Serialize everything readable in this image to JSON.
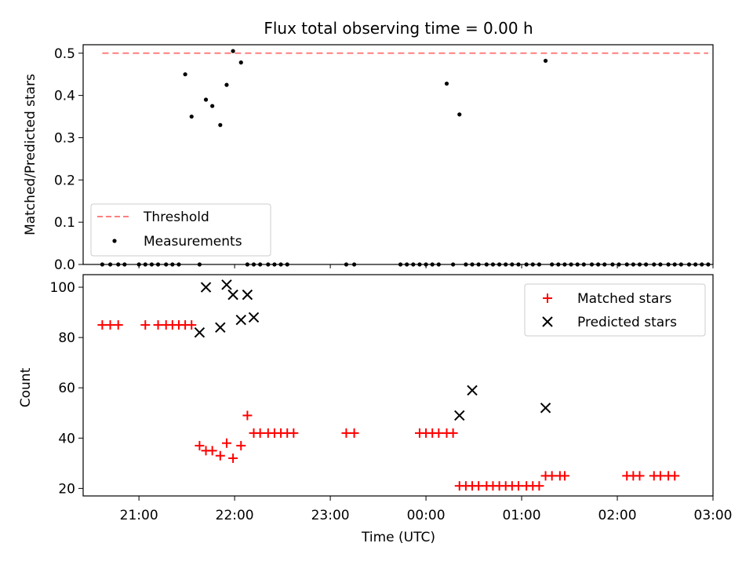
{
  "chart_data": [
    {
      "type": "scatter",
      "title": "Flux total observing time = 0.00 h",
      "xlabel": "",
      "ylabel": "Matched/Predicted stars",
      "xlim": [
        "20:25",
        "03:00"
      ],
      "ylim": [
        0,
        0.52
      ],
      "yticks": [
        "0.0",
        "0.1",
        "0.2",
        "0.3",
        "0.4",
        "0.5"
      ],
      "grid": false,
      "legend": {
        "placement": "lower-left",
        "entries": [
          "Threshold",
          "Measurements"
        ]
      },
      "series": [
        {
          "name": "Threshold",
          "kind": "dashed-line",
          "color": "#ff7f7f",
          "x": [
            "20:37",
            "02:57"
          ],
          "values": [
            0.5,
            0.5
          ]
        },
        {
          "name": "Measurements",
          "kind": "points",
          "color": "#000000",
          "x": [
            "20:37",
            "20:42",
            "20:47",
            "20:51",
            "21:00",
            "21:04",
            "21:08",
            "21:12",
            "21:17",
            "21:21",
            "21:25",
            "21:29",
            "21:33",
            "21:38",
            "21:42",
            "21:46",
            "21:51",
            "21:55",
            "21:59",
            "22:04",
            "22:08",
            "22:12",
            "22:16",
            "22:21",
            "22:25",
            "22:29",
            "22:33",
            "23:10",
            "23:15",
            "23:44",
            "23:48",
            "23:52",
            "23:56",
            "00:00",
            "00:04",
            "00:08",
            "00:13",
            "00:17",
            "00:21",
            "00:25",
            "00:29",
            "00:33",
            "00:38",
            "00:42",
            "00:46",
            "00:50",
            "00:54",
            "00:58",
            "01:03",
            "01:07",
            "01:11",
            "01:15",
            "01:19",
            "01:23",
            "01:27",
            "01:31",
            "01:35",
            "01:39",
            "01:44",
            "01:48",
            "01:52",
            "01:57",
            "02:01",
            "02:06",
            "02:10",
            "02:14",
            "02:18",
            "02:23",
            "02:27",
            "02:32",
            "02:36",
            "02:40",
            "02:45",
            "02:49",
            "02:53",
            "02:57"
          ],
          "values": [
            0,
            0,
            0,
            0,
            0,
            0,
            0,
            0,
            0,
            0,
            0,
            0.45,
            0.35,
            0,
            0.39,
            0.375,
            0.33,
            0.425,
            0.505,
            0.478,
            0,
            0,
            0,
            0,
            0,
            0,
            0,
            0,
            0,
            0,
            0,
            0,
            0,
            0,
            0,
            0,
            0.428,
            0,
            0.355,
            0,
            0,
            0,
            0,
            0,
            0,
            0,
            0,
            0,
            0,
            0,
            0,
            0.482,
            0,
            0,
            0,
            0,
            0,
            0,
            0,
            0,
            0,
            0,
            0,
            0,
            0,
            0,
            0,
            0,
            0,
            0,
            0,
            0,
            0,
            0,
            0,
            0
          ]
        }
      ]
    },
    {
      "type": "scatter",
      "title": "",
      "xlabel": "Time (UTC)",
      "ylabel": "Count",
      "xlim": [
        "20:25",
        "03:00"
      ],
      "ylim": [
        17,
        105
      ],
      "yticks": [
        "20",
        "40",
        "60",
        "80",
        "100"
      ],
      "xticks": [
        "21:00",
        "22:00",
        "23:00",
        "00:00",
        "01:00",
        "02:00",
        "03:00"
      ],
      "grid": false,
      "legend": {
        "placement": "upper-right",
        "entries": [
          "Matched stars",
          "Predicted stars"
        ]
      },
      "series": [
        {
          "name": "Matched stars",
          "marker": "plus",
          "color": "#ff0000",
          "x": [
            "20:37",
            "20:42",
            "20:47",
            "21:04",
            "21:12",
            "21:17",
            "21:21",
            "21:25",
            "21:29",
            "21:33",
            "21:38",
            "21:42",
            "21:46",
            "21:51",
            "21:55",
            "21:59",
            "22:04",
            "22:08",
            "22:12",
            "22:16",
            "22:21",
            "22:25",
            "22:29",
            "22:33",
            "22:37",
            "23:10",
            "23:15",
            "23:56",
            "00:00",
            "00:04",
            "00:08",
            "00:13",
            "00:17",
            "00:21",
            "00:25",
            "00:29",
            "00:33",
            "00:38",
            "00:42",
            "00:46",
            "00:50",
            "00:54",
            "00:58",
            "01:03",
            "01:07",
            "01:11",
            "01:15",
            "01:19",
            "01:24",
            "01:27",
            "02:06",
            "02:10",
            "02:14",
            "02:23",
            "02:27",
            "02:32",
            "02:36"
          ],
          "values": [
            85,
            85,
            85,
            85,
            85,
            85,
            85,
            85,
            85,
            85,
            37,
            35,
            35,
            33,
            38,
            32,
            37,
            49,
            42,
            42,
            42,
            42,
            42,
            42,
            42,
            42,
            42,
            42,
            42,
            42,
            42,
            42,
            42,
            21,
            21,
            21,
            21,
            21,
            21,
            21,
            21,
            21,
            21,
            21,
            21,
            21,
            25,
            25,
            25,
            25,
            25,
            25,
            25,
            25,
            25,
            25,
            25
          ]
        },
        {
          "name": "Predicted stars",
          "marker": "x",
          "color": "#000000",
          "x": [
            "21:38",
            "21:42",
            "21:51",
            "21:55",
            "21:59",
            "22:04",
            "22:08",
            "22:12",
            "00:21",
            "00:29",
            "01:15"
          ],
          "values": [
            82,
            100,
            84,
            101,
            97,
            87,
            97,
            88,
            49,
            59,
            52
          ]
        }
      ]
    }
  ]
}
